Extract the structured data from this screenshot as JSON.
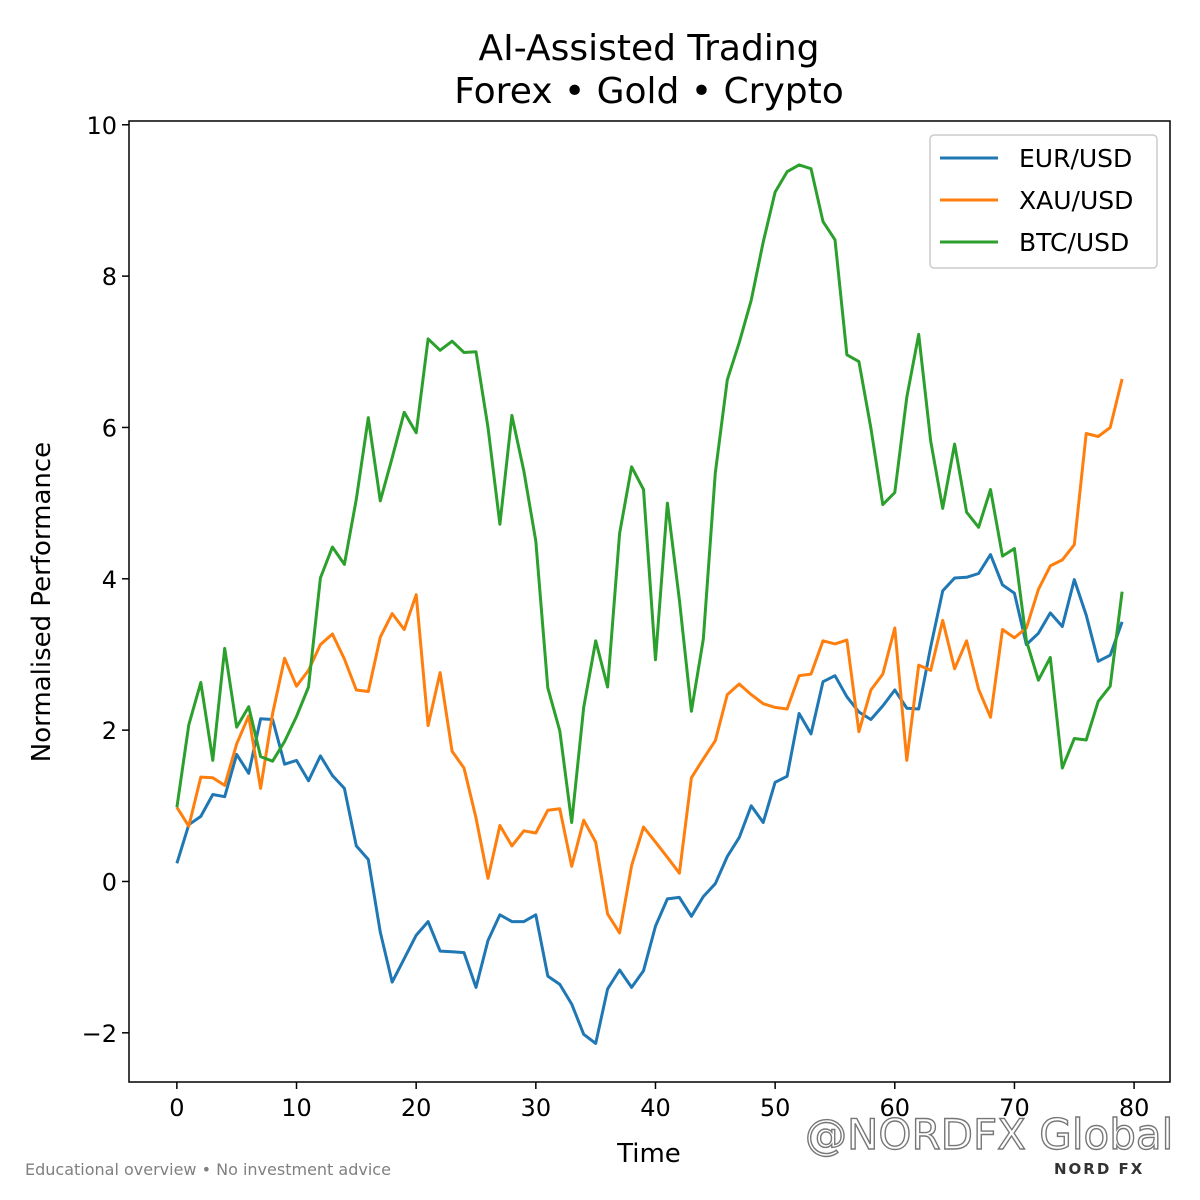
{
  "chart_data": {
    "type": "line",
    "title": "AI-Assisted Trading",
    "subtitle": "Forex • Gold • Crypto",
    "xlabel": "Time",
    "ylabel": "Normalised Performance",
    "xlim": [
      -4,
      83
    ],
    "ylim": [
      -2.65,
      10.05
    ],
    "xticks": [
      0,
      10,
      20,
      30,
      40,
      50,
      60,
      70,
      80
    ],
    "yticks": [
      -2,
      0,
      2,
      4,
      6,
      8,
      10
    ],
    "ytick_labels": [
      "−2",
      "0",
      "2",
      "4",
      "6",
      "8",
      "10"
    ],
    "legend_position": "top-right",
    "grid": false,
    "series": [
      {
        "name": "EUR/USD",
        "color": "#1f77b4",
        "values": [
          0.24,
          0.75,
          0.86,
          1.15,
          1.12,
          1.68,
          1.43,
          2.15,
          2.14,
          1.55,
          1.6,
          1.33,
          1.66,
          1.4,
          1.23,
          0.47,
          0.29,
          -0.67,
          -1.33,
          -1.02,
          -0.71,
          -0.53,
          -0.92,
          -0.93,
          -0.94,
          -1.4,
          -0.78,
          -0.44,
          -0.53,
          -0.53,
          -0.44,
          -1.25,
          -1.36,
          -1.62,
          -2.02,
          -2.14,
          -1.42,
          -1.17,
          -1.4,
          -1.18,
          -0.59,
          -0.23,
          -0.21,
          -0.46,
          -0.2,
          -0.03,
          0.33,
          0.58,
          1.0,
          0.78,
          1.31,
          1.39,
          2.22,
          1.95,
          2.64,
          2.72,
          2.44,
          2.24,
          2.14,
          2.32,
          2.53,
          2.29,
          2.28,
          3.1,
          3.84,
          4.01,
          4.02,
          4.07,
          4.32,
          3.92,
          3.81,
          3.13,
          3.28,
          3.55,
          3.37,
          3.99,
          3.52,
          2.91,
          2.99,
          3.43
        ]
      },
      {
        "name": "XAU/USD",
        "color": "#ff7f0e",
        "values": [
          0.98,
          0.73,
          1.38,
          1.37,
          1.27,
          1.82,
          2.19,
          1.23,
          2.22,
          2.95,
          2.58,
          2.79,
          3.13,
          3.27,
          2.94,
          2.53,
          2.51,
          3.23,
          3.54,
          3.33,
          3.79,
          2.06,
          2.76,
          1.72,
          1.5,
          0.84,
          0.04,
          0.74,
          0.47,
          0.67,
          0.64,
          0.94,
          0.96,
          0.2,
          0.81,
          0.52,
          -0.43,
          -0.68,
          0.21,
          0.72,
          0.52,
          0.32,
          0.11,
          1.37,
          1.62,
          1.86,
          2.47,
          2.61,
          2.47,
          2.35,
          2.3,
          2.28,
          2.72,
          2.74,
          3.18,
          3.14,
          3.19,
          1.98,
          2.53,
          2.74,
          3.35,
          1.6,
          2.86,
          2.79,
          3.45,
          2.81,
          3.18,
          2.54,
          2.17,
          3.33,
          3.22,
          3.35,
          3.86,
          4.17,
          4.25,
          4.45,
          5.92,
          5.88,
          6.0,
          6.64
        ]
      },
      {
        "name": "BTC/USD",
        "color": "#2ca02c",
        "values": [
          0.98,
          2.07,
          2.63,
          1.6,
          3.08,
          2.04,
          2.31,
          1.65,
          1.59,
          1.85,
          2.18,
          2.57,
          4.01,
          4.42,
          4.19,
          5.05,
          6.13,
          5.03,
          5.6,
          6.2,
          5.93,
          7.17,
          7.02,
          7.14,
          6.99,
          7.0,
          6.0,
          4.72,
          6.16,
          5.42,
          4.5,
          2.56,
          1.99,
          0.78,
          2.3,
          3.18,
          2.57,
          4.6,
          5.48,
          5.18,
          2.93,
          5.0,
          3.72,
          2.25,
          3.2,
          5.4,
          6.63,
          7.12,
          7.68,
          8.45,
          9.11,
          9.38,
          9.47,
          9.42,
          8.72,
          8.48,
          6.96,
          6.87,
          5.99,
          4.98,
          5.14,
          6.4,
          7.23,
          5.82,
          4.93,
          5.78,
          4.88,
          4.68,
          5.18,
          4.3,
          4.4,
          3.18,
          2.66,
          2.96,
          1.5,
          1.89,
          1.87,
          2.38,
          2.58,
          3.83
        ]
      }
    ]
  },
  "footer": {
    "disclaimer": "Educational overview • No investment advice",
    "watermark": "@NORDFX Global",
    "brand": "NORD FX"
  }
}
